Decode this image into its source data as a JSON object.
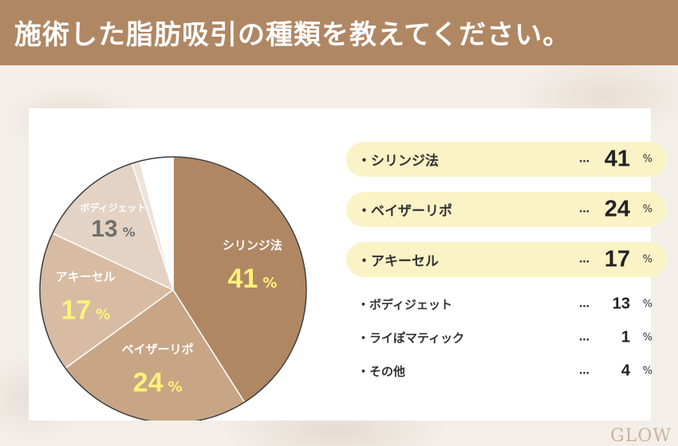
{
  "header": {
    "title": "施術した脂肪吸引の種類を教えてください。"
  },
  "chart_data": {
    "type": "pie",
    "title": "施術した脂肪吸引の種類を教えてください。",
    "unit": "%",
    "slices": [
      {
        "label": "シリンジ法",
        "value": 41,
        "color": "#b08763",
        "label_color": "#ffffff",
        "value_color": "#fff37a"
      },
      {
        "label": "ベイザーリポ",
        "value": 24,
        "color": "#c8a585",
        "label_color": "#ffffff",
        "value_color": "#fff37a"
      },
      {
        "label": "アキーセル",
        "value": 17,
        "color": "#d7bba2",
        "label_color": "#ffffff",
        "value_color": "#fff37a"
      },
      {
        "label": "ボディジェット",
        "value": 13,
        "color": "#e4d3c5",
        "label_color": "#ffffff",
        "value_color": "#6f6f6f"
      },
      {
        "label": "ライぽマティック",
        "value": 1,
        "color": "#ede3da",
        "label_color": "",
        "value_color": ""
      },
      {
        "label": "その他",
        "value": 4,
        "color": "#ffffff",
        "label_color": "",
        "value_color": ""
      }
    ],
    "legend": [
      {
        "label": "・シリンジ法",
        "dots": "…",
        "value": "41",
        "unit": "%",
        "highlight": true
      },
      {
        "label": "・ベイザーリポ",
        "dots": "…",
        "value": "24",
        "unit": "%",
        "highlight": true
      },
      {
        "label": "・アキーセル",
        "dots": "…",
        "value": "17",
        "unit": "%",
        "highlight": true
      },
      {
        "label": "・ボディジェット",
        "dots": "…",
        "value": "13",
        "unit": "%",
        "highlight": false
      },
      {
        "label": "・ライぽマティック",
        "dots": "…",
        "value": "1",
        "unit": "%",
        "highlight": false
      },
      {
        "label": "・その他",
        "dots": "…",
        "value": "4",
        "unit": "%",
        "highlight": false
      }
    ],
    "highlight_color": "#faf3c6"
  },
  "logo": {
    "text": "GLOW"
  }
}
